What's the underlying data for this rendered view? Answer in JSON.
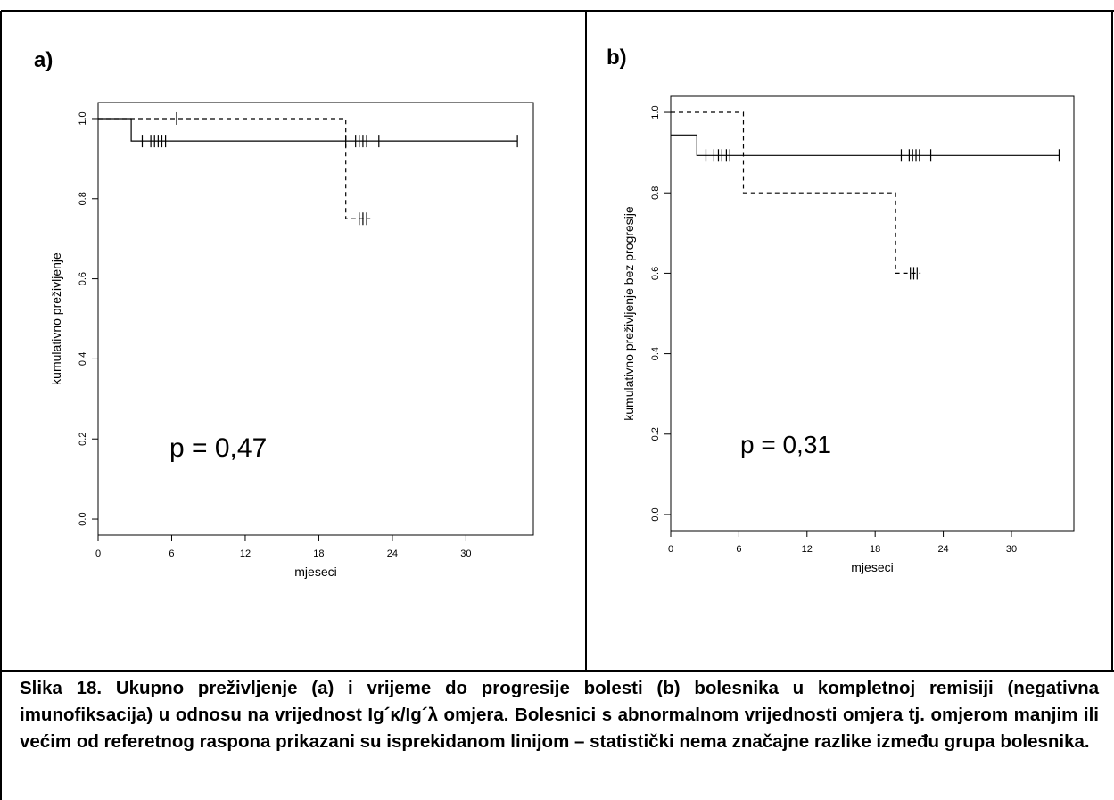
{
  "chart_data": [
    {
      "type": "line",
      "panel_label": "a)",
      "xlabel": "mjeseci",
      "ylabel": "kumulativno preživljenje",
      "annotation": "p = 0,47",
      "x_ticks": [
        "0",
        "6",
        "12",
        "18",
        "24",
        "30"
      ],
      "y_ticks": [
        "0.0",
        "0.2",
        "0.4",
        "0.6",
        "0.8",
        "1.0"
      ],
      "xlim": [
        0,
        35.5
      ],
      "ylim": [
        -0.04,
        1.04
      ],
      "grid": false,
      "series": [
        {
          "style": "solid",
          "steps": [
            [
              0,
              1.0
            ],
            [
              2.7,
              0.944
            ],
            [
              34.2,
              0.944
            ]
          ],
          "censored": [
            [
              3.6,
              0.944
            ],
            [
              4.3,
              0.944
            ],
            [
              4.6,
              0.944
            ],
            [
              4.9,
              0.944
            ],
            [
              5.2,
              0.944
            ],
            [
              5.5,
              0.944
            ],
            [
              20.2,
              0.944
            ],
            [
              21.0,
              0.944
            ],
            [
              21.3,
              0.944
            ],
            [
              21.6,
              0.944
            ],
            [
              21.9,
              0.944
            ],
            [
              22.9,
              0.944
            ],
            [
              34.2,
              0.944
            ]
          ]
        },
        {
          "style": "dashed",
          "steps": [
            [
              0,
              1.0
            ],
            [
              20.2,
              0.75
            ],
            [
              22.2,
              0.75
            ]
          ],
          "censored": [
            [
              6.4,
              1.0
            ],
            [
              21.3,
              0.75
            ],
            [
              21.6,
              0.75
            ],
            [
              21.9,
              0.75
            ]
          ]
        }
      ]
    },
    {
      "type": "line",
      "panel_label": "b)",
      "xlabel": "mjeseci",
      "ylabel": "kumulativno preživljenje bez progresije",
      "annotation": "p = 0,31",
      "x_ticks": [
        "0",
        "6",
        "12",
        "18",
        "24",
        "30"
      ],
      "y_ticks": [
        "0.0",
        "0.2",
        "0.4",
        "0.6",
        "0.8",
        "1.0"
      ],
      "xlim": [
        0,
        35.5
      ],
      "ylim": [
        -0.04,
        1.04
      ],
      "grid": false,
      "series": [
        {
          "style": "solid",
          "steps": [
            [
              0,
              0.944
            ],
            [
              2.3,
              0.893
            ],
            [
              34.2,
              0.893
            ]
          ],
          "censored": [
            [
              3.1,
              0.893
            ],
            [
              3.8,
              0.893
            ],
            [
              4.2,
              0.893
            ],
            [
              4.5,
              0.893
            ],
            [
              4.9,
              0.893
            ],
            [
              5.2,
              0.893
            ],
            [
              20.3,
              0.893
            ],
            [
              21.0,
              0.893
            ],
            [
              21.3,
              0.893
            ],
            [
              21.6,
              0.893
            ],
            [
              21.9,
              0.893
            ],
            [
              22.9,
              0.893
            ],
            [
              34.2,
              0.893
            ]
          ]
        },
        {
          "style": "dashed",
          "steps": [
            [
              0,
              1.0
            ],
            [
              6.4,
              0.8
            ],
            [
              19.8,
              0.6
            ],
            [
              22.0,
              0.6
            ]
          ],
          "censored": [
            [
              21.1,
              0.6
            ],
            [
              21.4,
              0.6
            ],
            [
              21.7,
              0.6
            ]
          ]
        }
      ]
    }
  ],
  "caption": "Slika 18. Ukupno preživljenje (a) i vrijeme do progresije bolesti (b) bolesnika u kompletnoj remisiji (negativna imunofiksacija) u odnosu na vrijednost Ig´κ/Ig´λ omjera. Bolesnici s abnormalnom vrijednosti omjera tj. omjerom manjim ili većim od referetnog raspona prikazani su isprekidanom linijom – statistički nema značajne razlike između grupa bolesnika."
}
